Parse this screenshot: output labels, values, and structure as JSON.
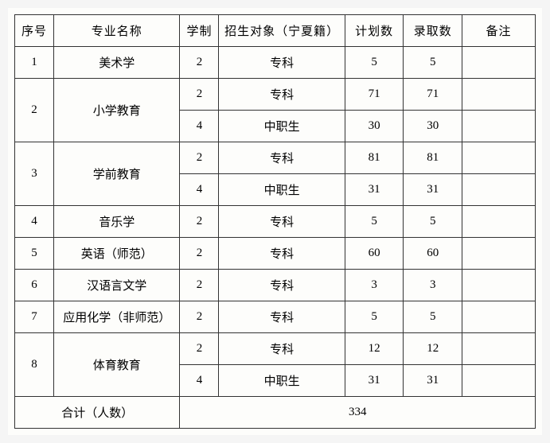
{
  "columns": [
    "序号",
    "专业名称",
    "学制",
    "招生对象（宁夏籍）",
    "计划数",
    "录取数",
    "备注"
  ],
  "rows": [
    {
      "seq": "1",
      "major": "美术学",
      "sub": [
        {
          "duration": "2",
          "target": "专科",
          "plan": "5",
          "admit": "5",
          "note": ""
        }
      ]
    },
    {
      "seq": "2",
      "major": "小学教育",
      "sub": [
        {
          "duration": "2",
          "target": "专科",
          "plan": "71",
          "admit": "71",
          "note": ""
        },
        {
          "duration": "4",
          "target": "中职生",
          "plan": "30",
          "admit": "30",
          "note": ""
        }
      ]
    },
    {
      "seq": "3",
      "major": "学前教育",
      "sub": [
        {
          "duration": "2",
          "target": "专科",
          "plan": "81",
          "admit": "81",
          "note": ""
        },
        {
          "duration": "4",
          "target": "中职生",
          "plan": "31",
          "admit": "31",
          "note": ""
        }
      ]
    },
    {
      "seq": "4",
      "major": "音乐学",
      "sub": [
        {
          "duration": "2",
          "target": "专科",
          "plan": "5",
          "admit": "5",
          "note": ""
        }
      ]
    },
    {
      "seq": "5",
      "major": "英语（师范）",
      "sub": [
        {
          "duration": "2",
          "target": "专科",
          "plan": "60",
          "admit": "60",
          "note": ""
        }
      ]
    },
    {
      "seq": "6",
      "major": "汉语言文学",
      "sub": [
        {
          "duration": "2",
          "target": "专科",
          "plan": "3",
          "admit": "3",
          "note": ""
        }
      ]
    },
    {
      "seq": "7",
      "major": "应用化学（非师范）",
      "sub": [
        {
          "duration": "2",
          "target": "专科",
          "plan": "5",
          "admit": "5",
          "note": ""
        }
      ]
    },
    {
      "seq": "8",
      "major": "体育教育",
      "sub": [
        {
          "duration": "2",
          "target": "专科",
          "plan": "12",
          "admit": "12",
          "note": ""
        },
        {
          "duration": "4",
          "target": "中职生",
          "plan": "31",
          "admit": "31",
          "note": ""
        }
      ]
    }
  ],
  "totalLabel": "合计（人数）",
  "totalValue": "334"
}
